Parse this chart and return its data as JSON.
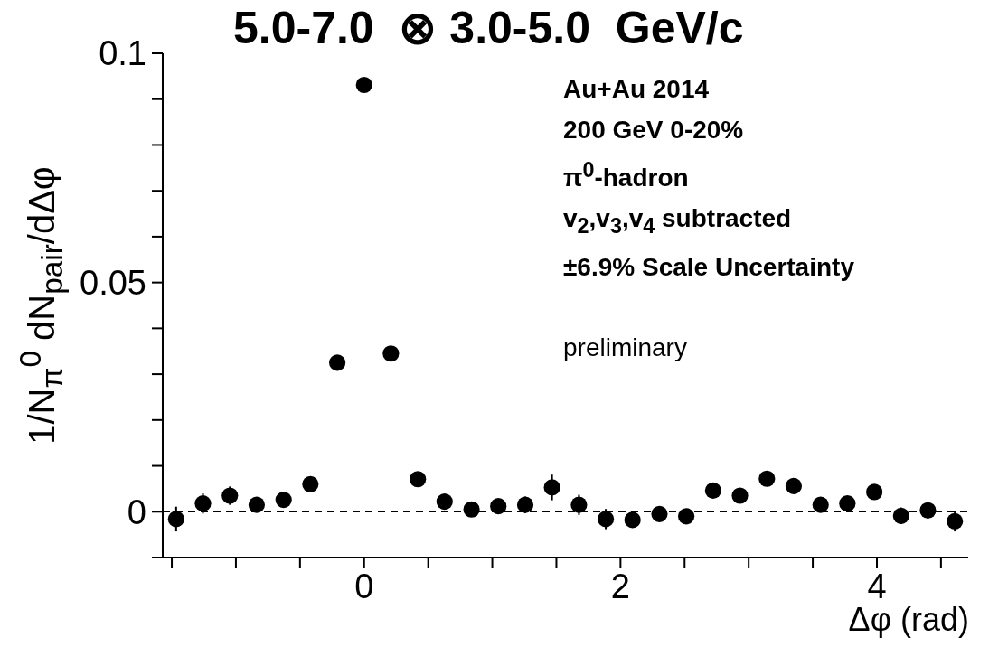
{
  "chart_data": {
    "type": "scatter",
    "title": "5.0-7.0  ⊗ 3.0-5.0  GeV/c",
    "xlabel": "Δφ (rad)",
    "ylabel": "1/N$_{π}$$^{0}$ dN$_{pair}$/dΔφ",
    "annotations": [
      "Au+Au 2014",
      "200 GeV 0-20%",
      "π$^{0}$-hadron",
      "v$_{2}$,v$_{3}$,v$_{4}$ subtracted",
      "±6.9% Scale Uncertainty",
      "preliminary"
    ],
    "x": [
      -1.466,
      -1.257,
      -1.047,
      -0.838,
      -0.628,
      -0.419,
      -0.209,
      0,
      0.209,
      0.419,
      0.628,
      0.838,
      1.047,
      1.257,
      1.466,
      1.676,
      1.885,
      2.094,
      2.304,
      2.513,
      2.723,
      2.932,
      3.142,
      3.351,
      3.561,
      3.77,
      3.98,
      4.189,
      4.398,
      4.608
    ],
    "values": [
      -0.0016,
      0.0018,
      0.0035,
      0.0015,
      0.0026,
      0.006,
      0.0325,
      0.0931,
      0.0345,
      0.0071,
      0.0022,
      0.0005,
      0.0012,
      0.0015,
      0.0053,
      0.0015,
      -0.0016,
      -0.0018,
      -0.0005,
      -0.001,
      0.0046,
      0.0035,
      0.0072,
      0.0056,
      0.0015,
      0.0018,
      0.0043,
      -0.0009,
      0.0003,
      -0.0021
    ],
    "errors": [
      0.0027,
      0.0022,
      0.002,
      0.0012,
      0.0012,
      0.0012,
      0.0008,
      0.0015,
      0.0008,
      0.0012,
      0.0012,
      0.0012,
      0.0015,
      0.0018,
      0.0028,
      0.0022,
      0.0022,
      0.0012,
      0.0012,
      0.0008,
      0.0008,
      0.0008,
      0.0008,
      0.0008,
      0.0012,
      0.0012,
      0.0012,
      0.0018,
      0.0018,
      0.0022
    ],
    "color": "#000000",
    "marker": "circle",
    "xlim": [
      -1.5708,
      4.7124
    ],
    "xticks": [
      {
        "value": -1.5,
        "label": null
      },
      {
        "value": -1,
        "label": null
      },
      {
        "value": -0.5,
        "label": null
      },
      0,
      {
        "value": 0.5,
        "label": null
      },
      {
        "value": 1,
        "label": null
      },
      {
        "value": 1.5,
        "label": null
      },
      2,
      {
        "value": 2.5,
        "label": null
      },
      {
        "value": 3,
        "label": null
      },
      {
        "value": 3.5,
        "label": null
      },
      4,
      {
        "value": 4.5,
        "label": null
      }
    ],
    "ylim": [
      -0.01,
      0.1
    ],
    "yticks": [
      {
        "value": -0.01,
        "label": null
      },
      0,
      {
        "value": 0.01,
        "label": null
      },
      {
        "value": 0.02,
        "label": null
      },
      {
        "value": 0.03,
        "label": null
      },
      {
        "value": 0.04,
        "label": null
      },
      0.05,
      {
        "value": 0.06,
        "label": null
      },
      {
        "value": 0.07,
        "label": null
      },
      {
        "value": 0.08,
        "label": null
      },
      {
        "value": 0.09,
        "label": null
      },
      0.1
    ],
    "ref_lines": [
      {
        "axis": "y",
        "value": 0,
        "label": null,
        "color": "#000000",
        "line_style": "dashed"
      }
    ],
    "grid": false,
    "legend": false
  }
}
